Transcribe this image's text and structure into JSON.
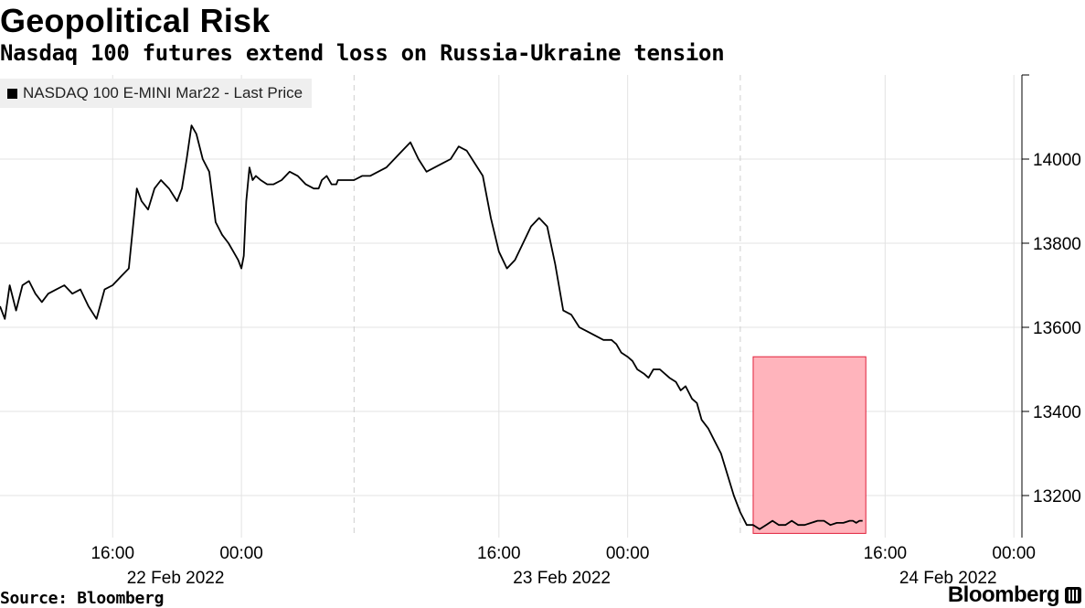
{
  "header": {
    "title": "Geopolitical Risk",
    "subtitle": "Nasdaq 100 futures extend loss on Russia-Ukraine tension"
  },
  "footer": {
    "source": "Source: Bloomberg",
    "brand": "Bloomberg"
  },
  "colors": {
    "line": "#000000",
    "highlight_fill": "#ffb0b8",
    "highlight_stroke": "#e0203a",
    "grid": "#e3e3e3"
  },
  "chart_data": {
    "type": "line",
    "title": "Geopolitical Risk",
    "subtitle": "Nasdaq 100 futures extend loss on Russia-Ukraine tension",
    "legend": {
      "entries": [
        "NASDAQ 100 E-MINI Mar22 - Last Price"
      ],
      "placement": "top-left"
    },
    "grid": true,
    "x_unit": "hours since 22 Feb 2022 00:00",
    "xlim": [
      9.0,
      72.5
    ],
    "ylim": [
      13100,
      14200
    ],
    "y_ticks": [
      13200,
      13400,
      13600,
      13800,
      14000
    ],
    "y_axis_side": "right",
    "x_ticks": [
      {
        "x": 16,
        "label": "16:00"
      },
      {
        "x": 24,
        "label": "00:00"
      },
      {
        "x": 40,
        "label": "16:00"
      },
      {
        "x": 48,
        "label": "00:00"
      },
      {
        "x": 64,
        "label": "16:00"
      },
      {
        "x": 72,
        "label": "00:00"
      }
    ],
    "date_labels": [
      {
        "x": 24,
        "label": "22 Feb 2022"
      },
      {
        "x": 48,
        "label": "23 Feb 2022"
      },
      {
        "x": 72,
        "label": "24 Feb 2022"
      }
    ],
    "day_separators": [
      31,
      55
    ],
    "highlight": {
      "x": [
        55.8,
        62.8
      ],
      "y": [
        13110,
        13530
      ]
    },
    "series": [
      {
        "name": "NASDAQ 100 E-MINI Mar22 - Last Price",
        "x": [
          9.0,
          9.3,
          9.6,
          10.0,
          10.4,
          10.8,
          11.2,
          11.6,
          12.0,
          12.5,
          13.0,
          13.5,
          14.0,
          14.5,
          15.0,
          15.5,
          16.0,
          16.5,
          17.0,
          17.5,
          17.8,
          18.2,
          18.6,
          19.0,
          19.5,
          20.0,
          20.3,
          20.6,
          20.9,
          21.2,
          21.6,
          22.0,
          22.4,
          22.8,
          23.2,
          23.5,
          23.8,
          24.0,
          24.15,
          24.3,
          24.5,
          24.7,
          24.9,
          25.2,
          25.6,
          26.0,
          26.5,
          27.0,
          27.5,
          28.0,
          28.5,
          28.8,
          29.0,
          29.3,
          29.6,
          29.9,
          30.0,
          30.3,
          30.6,
          31.0,
          31.5,
          32.0,
          32.5,
          33.0,
          33.5,
          34.0,
          34.5,
          35.0,
          35.5,
          36.0,
          36.5,
          37.0,
          37.5,
          38.0,
          38.5,
          39.0,
          39.5,
          40.0,
          40.5,
          41.0,
          41.5,
          42.0,
          42.5,
          43.0,
          43.5,
          44.0,
          44.5,
          45.0,
          45.5,
          46.0,
          46.5,
          47.0,
          47.3,
          47.6,
          48.0,
          48.3,
          48.6,
          49.0,
          49.3,
          49.6,
          50.0,
          50.3,
          50.6,
          51.0,
          51.3,
          51.6,
          52.0,
          52.3,
          52.6,
          53.0,
          53.4,
          53.8,
          54.2,
          54.6,
          55.0,
          55.4,
          55.8,
          56.2,
          56.6,
          57.0,
          57.4,
          57.8,
          58.2,
          58.6,
          59.0,
          59.4,
          59.8,
          60.2,
          60.6,
          61.0,
          61.4,
          61.8,
          62.0,
          62.2,
          62.4,
          62.6
        ],
        "values": [
          13650,
          13620,
          13700,
          13640,
          13700,
          13710,
          13680,
          13660,
          13680,
          13690,
          13700,
          13680,
          13690,
          13650,
          13620,
          13690,
          13700,
          13720,
          13740,
          13930,
          13900,
          13880,
          13930,
          13950,
          13930,
          13900,
          13930,
          14000,
          14080,
          14060,
          14000,
          13970,
          13850,
          13820,
          13800,
          13780,
          13760,
          13740,
          13770,
          13900,
          13980,
          13950,
          13960,
          13950,
          13940,
          13940,
          13950,
          13970,
          13960,
          13940,
          13930,
          13930,
          13950,
          13960,
          13940,
          13940,
          13950,
          13950,
          13950,
          13950,
          13960,
          13960,
          13970,
          13980,
          14000,
          14020,
          14040,
          14000,
          13970,
          13980,
          13990,
          14000,
          14030,
          14020,
          13990,
          13960,
          13860,
          13780,
          13740,
          13760,
          13800,
          13840,
          13860,
          13840,
          13750,
          13640,
          13630,
          13600,
          13590,
          13580,
          13570,
          13570,
          13560,
          13540,
          13530,
          13520,
          13500,
          13490,
          13480,
          13500,
          13500,
          13490,
          13480,
          13470,
          13450,
          13460,
          13430,
          13420,
          13380,
          13360,
          13330,
          13300,
          13250,
          13200,
          13160,
          13130,
          13130,
          13120,
          13130,
          13140,
          13130,
          13130,
          13140,
          13130,
          13130,
          13135,
          13140,
          13140,
          13130,
          13135,
          13135,
          13140,
          13140,
          13135,
          13140,
          13140
        ]
      }
    ]
  }
}
